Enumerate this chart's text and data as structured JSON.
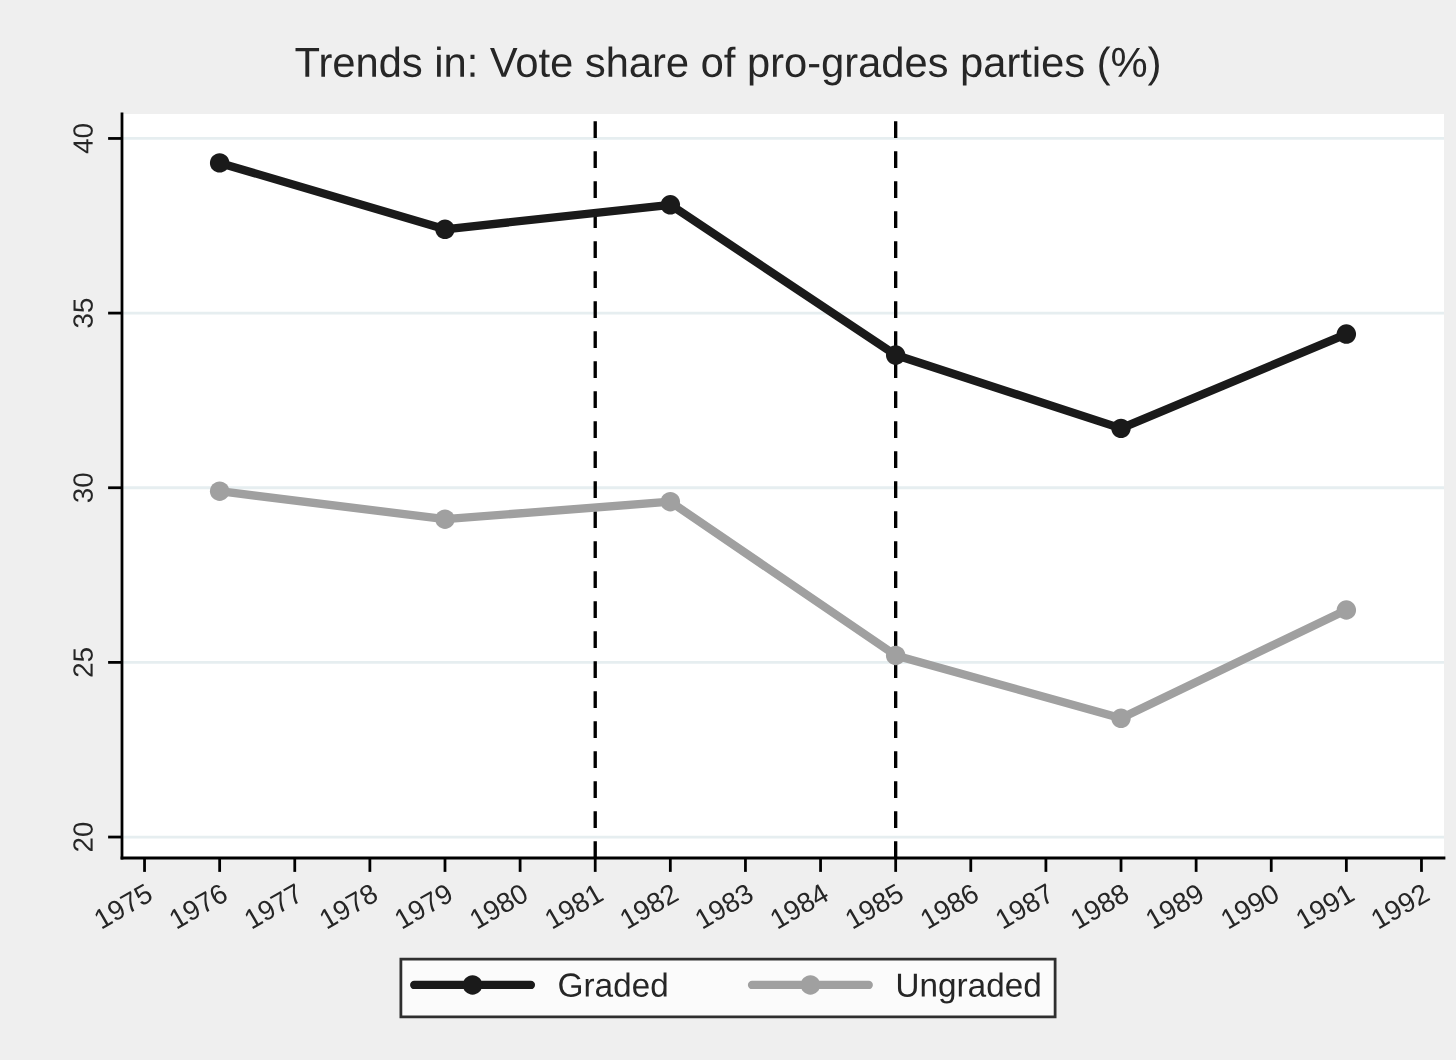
{
  "chart_data": {
    "type": "line",
    "title": "Trends in: Vote share of pro-grades parties (%)",
    "x": [
      1976,
      1979,
      1982,
      1985,
      1988,
      1991
    ],
    "series": [
      {
        "name": "Graded",
        "color": "#1a1a1a",
        "values": [
          39.3,
          37.4,
          38.1,
          33.8,
          31.7,
          34.4
        ]
      },
      {
        "name": "Ungraded",
        "color": "#a0a0a0",
        "values": [
          29.9,
          29.1,
          29.6,
          25.2,
          23.4,
          26.5
        ]
      }
    ],
    "xlim": [
      1974.7,
      1992.3
    ],
    "xticks": [
      1975,
      1976,
      1977,
      1978,
      1979,
      1980,
      1981,
      1982,
      1983,
      1984,
      1985,
      1986,
      1987,
      1988,
      1989,
      1990,
      1991,
      1992
    ],
    "ylim": [
      19.4,
      40.7
    ],
    "yticks": [
      20,
      25,
      30,
      35,
      40
    ],
    "ref_lines": [
      {
        "axis": "x",
        "value": 1981,
        "color": "#000000",
        "line_style": "dashed"
      },
      {
        "axis": "x",
        "value": 1985,
        "color": "#000000",
        "line_style": "dashed"
      }
    ],
    "grid": "y",
    "legend": "bottom",
    "marker": "circle",
    "line_style": "solid"
  }
}
